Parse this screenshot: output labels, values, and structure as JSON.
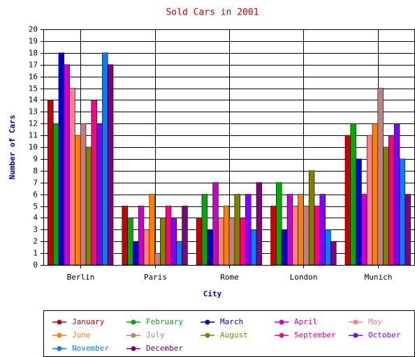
{
  "chart_data": {
    "type": "bar",
    "title": "Sold Cars in 2001",
    "x_label": "City",
    "y_label": "Number of Cars",
    "categories": [
      "Berlin",
      "Paris",
      "Rome",
      "London",
      "Munich"
    ],
    "series": [
      {
        "name": "January",
        "color": "#cc0000",
        "values": [
          14,
          5,
          4,
          5,
          11
        ]
      },
      {
        "name": "February",
        "color": "#00aa00",
        "values": [
          12,
          4,
          6,
          7,
          12
        ]
      },
      {
        "name": "March",
        "color": "#0000cc",
        "values": [
          18,
          2,
          3,
          3,
          9
        ]
      },
      {
        "name": "April",
        "color": "#cc00cc",
        "values": [
          17,
          5,
          7,
          6,
          6
        ]
      },
      {
        "name": "May",
        "color": "#ff8080",
        "values": [
          15,
          3,
          4,
          5,
          11
        ]
      },
      {
        "name": "June",
        "color": "#ff8000",
        "values": [
          11,
          6,
          5,
          6,
          12
        ]
      },
      {
        "name": "July",
        "color": "#c08080",
        "values": [
          12,
          1,
          4,
          5,
          15
        ]
      },
      {
        "name": "August",
        "color": "#808000",
        "values": [
          10,
          4,
          6,
          8,
          10
        ]
      },
      {
        "name": "September",
        "color": "#ff0080",
        "values": [
          14,
          5,
          4,
          5,
          11
        ]
      },
      {
        "name": "October",
        "color": "#8000ff",
        "values": [
          12,
          4,
          6,
          6,
          12
        ]
      },
      {
        "name": "November",
        "color": "#0080ff",
        "values": [
          18,
          2,
          3,
          3,
          9
        ]
      },
      {
        "name": "December",
        "color": "#800080",
        "values": [
          17,
          5,
          7,
          2,
          6
        ]
      }
    ],
    "ylim": [
      0,
      20
    ],
    "yticks": [
      0,
      1,
      2,
      3,
      4,
      5,
      6,
      7,
      8,
      9,
      10,
      11,
      12,
      13,
      14,
      15,
      16,
      17,
      18,
      19,
      20
    ],
    "grid": true,
    "legend": "bottom"
  }
}
